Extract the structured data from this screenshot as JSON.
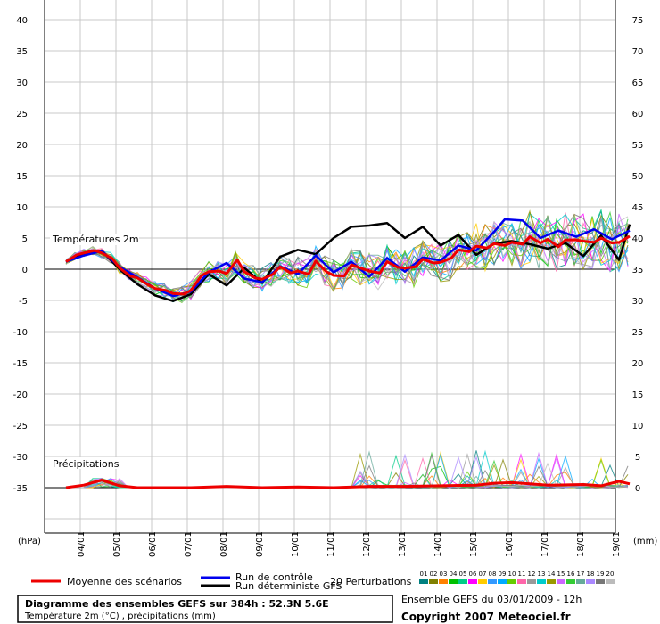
{
  "chart_data": {
    "type": "line",
    "title": "Diagramme des ensembles GEFS sur 384h : 52.3N 5.6E",
    "subtitle": "Température 2m (°C) , précipitations (mm)",
    "run_info": "Ensemble GEFS du 03/01/2009 - 12h",
    "copyright": "Copyright 2007 Meteociel.fr",
    "left_axis": {
      "unit": "(hPa)",
      "ticks": [
        40,
        35,
        30,
        25,
        20,
        15,
        10,
        5,
        0,
        -5,
        -10,
        -15,
        -20,
        -25,
        -30,
        -35
      ]
    },
    "right_axis": {
      "unit": "(mm)",
      "ticks": [
        75,
        70,
        65,
        60,
        55,
        50,
        45,
        40,
        35,
        30,
        25,
        20,
        15,
        10,
        5,
        0
      ]
    },
    "x_categories": [
      "04/01",
      "05/01",
      "06/01",
      "07/01",
      "08/01",
      "09/01",
      "10/01",
      "11/01",
      "12/01",
      "13/01",
      "14/01",
      "15/01",
      "16/01",
      "17/01",
      "18/01",
      "19/01"
    ],
    "panels": {
      "temperature": "Températures 2m",
      "precipitation": "Précipitations"
    },
    "legend": {
      "mean": "Moyenne des scénarios",
      "control": "Run de contrôle",
      "deterministic": "Run déterministe GFS",
      "perturbations": "20 Perturbations",
      "perturbation_ids": [
        "01",
        "02",
        "03",
        "04",
        "05",
        "06",
        "07",
        "08",
        "09",
        "10",
        "11",
        "12",
        "13",
        "14",
        "15",
        "16",
        "17",
        "18",
        "19",
        "20"
      ]
    },
    "grid": true,
    "series": [
      {
        "name": "Moyenne des scénarios",
        "color": "#ee0000",
        "panel": "temperature",
        "x": [
          3.6,
          3.9,
          4.1,
          4.4,
          4.6,
          4.9,
          5.1,
          5.4,
          5.6,
          5.9,
          6.1,
          6.4,
          6.6,
          6.9,
          7.1,
          7.4,
          7.6,
          7.9,
          8.1,
          8.4,
          8.6,
          8.9,
          9.1,
          9.4,
          9.6,
          9.9,
          10.1,
          10.4,
          10.6,
          10.9,
          11.1,
          11.4,
          11.6,
          11.9,
          12.1,
          12.4,
          12.6,
          12.9,
          13.1,
          13.4,
          13.6,
          13.9,
          14.1,
          14.4,
          14.6,
          14.9,
          15.1,
          15.4,
          15.6,
          15.9,
          16.1,
          16.4,
          16.6,
          16.9,
          17.1,
          17.4,
          17.6,
          17.9,
          18.1,
          18.4,
          18.6,
          18.9,
          19.1,
          19.4
        ],
        "y": [
          1.2,
          2.3,
          2.6,
          3,
          2.6,
          1.7,
          0.2,
          -1.1,
          -1.4,
          -2.5,
          -3.1,
          -3.4,
          -3.9,
          -4,
          -3.4,
          -1,
          -0.4,
          -0.3,
          -0.7,
          1.5,
          -0.4,
          -1.4,
          -1.6,
          -0.8,
          0.4,
          -0.6,
          -0.3,
          -0.8,
          1.3,
          -0.4,
          -1,
          -1.1,
          0.7,
          0.1,
          -0.3,
          -0.6,
          1.2,
          0.3,
          0.2,
          0.4,
          1.6,
          1,
          1.1,
          1.8,
          3.1,
          2.8,
          3.7,
          3.4,
          4.1,
          3.8,
          4.3,
          4,
          5.2,
          4.2,
          4.8,
          3.6,
          4.7,
          4.7,
          4.5,
          4.3,
          5,
          4.2,
          4.3,
          5.3
        ]
      },
      {
        "name": "Run de contrôle",
        "color": "#0000ee",
        "panel": "temperature",
        "x": [
          3.6,
          4.1,
          4.6,
          5.1,
          5.6,
          6.1,
          6.6,
          7.1,
          7.6,
          8.1,
          8.6,
          9.1,
          9.6,
          10.1,
          10.6,
          11.1,
          11.6,
          12.1,
          12.6,
          13.1,
          13.6,
          14.1,
          14.6,
          15.1,
          15.6,
          15.9,
          16.4,
          16.9,
          17.4,
          17.9,
          18.4,
          18.9,
          19.4
        ],
        "y": [
          1.2,
          2.2,
          2.9,
          0.4,
          -1.3,
          -3.1,
          -4.3,
          -3.6,
          -0.5,
          1,
          -1.5,
          -2.1,
          0.5,
          -0.8,
          2.2,
          -0.5,
          1.2,
          -1.2,
          1.8,
          -0.4,
          1.9,
          1.4,
          3.8,
          3,
          6,
          8,
          7.8,
          5,
          6.2,
          5.2,
          6.4,
          4.8,
          6.2
        ]
      },
      {
        "name": "Run déterministe GFS",
        "color": "#000000",
        "panel": "temperature",
        "x": [
          3.6,
          4.1,
          4.6,
          5.1,
          5.6,
          6.1,
          6.6,
          7.1,
          7.6,
          8.1,
          8.6,
          9.1,
          9.6,
          10.1,
          10.6,
          11.1,
          11.6,
          12.1,
          12.6,
          13.1,
          13.6,
          14.1,
          14.6,
          15.1,
          15.6,
          16.1,
          16.6,
          17.1,
          17.6,
          18.1,
          18.6,
          19.1,
          19.4
        ],
        "y": [
          1.2,
          2.4,
          3,
          0,
          -2.4,
          -4.2,
          -5.1,
          -4,
          -0.8,
          -2.6,
          0.2,
          -2.2,
          2,
          3.1,
          2.4,
          5,
          6.8,
          7,
          7.4,
          5,
          6.8,
          3.8,
          5.5,
          2.3,
          4.1,
          4.5,
          4,
          3.3,
          4.2,
          2.1,
          5.4,
          1.5,
          7.2
        ]
      },
      {
        "name": "Moyenne des scénarios",
        "color": "#ee0000",
        "panel": "precipitation",
        "x": [
          3.6,
          4.1,
          4.6,
          5.1,
          5.6,
          6.1,
          7.1,
          8.1,
          9.1,
          10.1,
          11.1,
          12.1,
          13.1,
          14.1,
          15.1,
          15.6,
          16.1,
          16.6,
          17.1,
          18.1,
          18.6,
          19.1,
          19.4
        ],
        "y": [
          0,
          0.4,
          1.2,
          0.3,
          0,
          0,
          0,
          0.2,
          0,
          0.1,
          0,
          0.2,
          0.2,
          0.3,
          0.4,
          0.7,
          0.8,
          0.6,
          0.4,
          0.5,
          0.3,
          1,
          0.6
        ]
      }
    ]
  }
}
